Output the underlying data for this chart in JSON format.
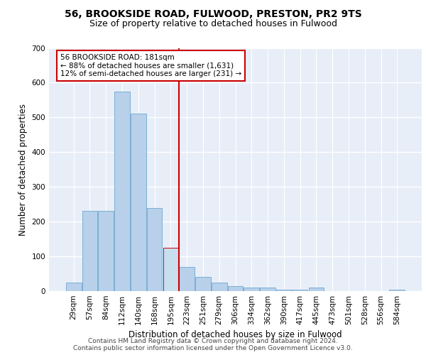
{
  "title_line1": "56, BROOKSIDE ROAD, FULWOOD, PRESTON, PR2 9TS",
  "title_line2": "Size of property relative to detached houses in Fulwood",
  "xlabel": "Distribution of detached houses by size in Fulwood",
  "ylabel": "Number of detached properties",
  "categories": [
    "29sqm",
    "57sqm",
    "84sqm",
    "112sqm",
    "140sqm",
    "168sqm",
    "195sqm",
    "223sqm",
    "251sqm",
    "279sqm",
    "306sqm",
    "334sqm",
    "362sqm",
    "390sqm",
    "417sqm",
    "445sqm",
    "473sqm",
    "501sqm",
    "528sqm",
    "556sqm",
    "584sqm"
  ],
  "values": [
    25,
    230,
    230,
    575,
    510,
    240,
    125,
    70,
    40,
    25,
    15,
    10,
    10,
    5,
    5,
    10,
    0,
    0,
    0,
    0,
    5
  ],
  "bar_color": "#b8d0ea",
  "bar_edge_color": "#7bafd4",
  "highlight_bar_index": 6,
  "highlight_bar_color": "#c8dff0",
  "highlight_bar_edge_color": "#cc0000",
  "vline_color": "#cc0000",
  "annotation_text": "56 BROOKSIDE ROAD: 181sqm\n← 88% of detached houses are smaller (1,631)\n12% of semi-detached houses are larger (231) →",
  "annotation_box_color": "#ffffff",
  "annotation_box_edge_color": "#cc0000",
  "ylim": [
    0,
    700
  ],
  "yticks": [
    0,
    100,
    200,
    300,
    400,
    500,
    600,
    700
  ],
  "footer_line1": "Contains HM Land Registry data © Crown copyright and database right 2024.",
  "footer_line2": "Contains public sector information licensed under the Open Government Licence v3.0.",
  "fig_bg_color": "#ffffff",
  "plot_bg_color": "#e8eef8",
  "grid_color": "#ffffff",
  "title_fontsize": 10,
  "subtitle_fontsize": 9,
  "axis_label_fontsize": 8.5,
  "tick_fontsize": 7.5,
  "annotation_fontsize": 7.5,
  "footer_fontsize": 6.5
}
